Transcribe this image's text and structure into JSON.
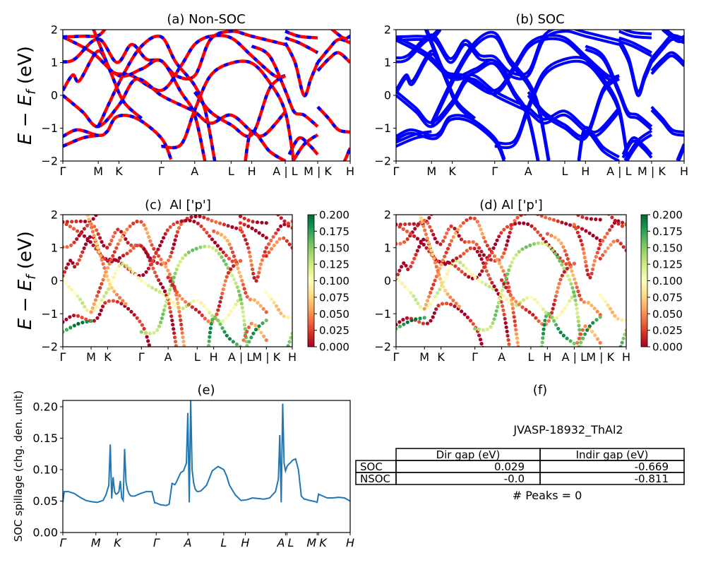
{
  "chart_data": [
    {
      "id": "a",
      "type": "line",
      "title": "(a) Non-SOC",
      "ylabel": "E − E_f (eV)",
      "ylim": [
        -2,
        2
      ],
      "yticks": [
        -2,
        -1,
        0,
        1,
        2
      ],
      "ytick_labels": [
        "−2",
        "−1",
        "0",
        "1",
        "2"
      ],
      "xticks": [
        0,
        0.36,
        0.57,
        1.0,
        1.34,
        1.71,
        1.92,
        2.26,
        2.59,
        2.92
      ],
      "xtick_labels": [
        "Γ",
        "M",
        "K",
        "Γ",
        "A",
        "L",
        "H",
        "A | L",
        "M | K",
        "H"
      ],
      "xlim": [
        0,
        2.92
      ],
      "series": [
        {
          "name": "bands-nonsoc",
          "color": "#ff0000",
          "style": "solid"
        },
        {
          "name": "bands-nonsoc-overlay",
          "color": "#0000ff",
          "style": "dashed"
        }
      ]
    },
    {
      "id": "b",
      "type": "line",
      "title": "(b) SOC",
      "ylim": [
        -2,
        2
      ],
      "yticks": [
        -2,
        -1,
        0,
        1,
        2
      ],
      "ytick_labels": [
        "−2",
        "−1",
        "0",
        "1",
        "2"
      ],
      "xticks": [
        0,
        0.36,
        0.57,
        1.0,
        1.34,
        1.71,
        1.92,
        2.26,
        2.59,
        2.92
      ],
      "xtick_labels": [
        "Γ",
        "M",
        "K",
        "Γ",
        "A",
        "L",
        "H",
        "A | L",
        "M | K",
        "H"
      ],
      "xlim": [
        0,
        2.92
      ],
      "series": [
        {
          "name": "bands-soc",
          "color": "#0000ff",
          "style": "solid"
        }
      ]
    },
    {
      "id": "c",
      "type": "scatter",
      "title": "(c)  Al ['p']",
      "ylabel": "E − E_f (eV)",
      "ylim": [
        -2,
        2
      ],
      "yticks": [
        -2,
        -1,
        0,
        1,
        2
      ],
      "ytick_labels": [
        "−2",
        "−1",
        "0",
        "1",
        "2"
      ],
      "xticks": [
        0,
        0.36,
        0.57,
        1.0,
        1.34,
        1.71,
        1.92,
        2.26,
        2.59,
        2.92
      ],
      "xtick_labels": [
        "Γ",
        "M",
        "K",
        "Γ",
        "A",
        "L",
        "H",
        "A | L",
        "M | K",
        "H"
      ],
      "colorbar": {
        "cmap": "RdYlGn",
        "range": [
          0.0,
          0.2
        ],
        "ticks": [
          "0.000",
          "0.025",
          "0.050",
          "0.075",
          "0.100",
          "0.125",
          "0.150",
          "0.175",
          "0.200"
        ]
      }
    },
    {
      "id": "d",
      "type": "scatter",
      "title": "(d) Al ['p']",
      "ylim": [
        -2,
        2
      ],
      "yticks": [
        -2,
        -1,
        0,
        1,
        2
      ],
      "ytick_labels": [
        "−2",
        "−1",
        "0",
        "1",
        "2"
      ],
      "xticks": [
        0,
        0.36,
        0.57,
        1.0,
        1.34,
        1.71,
        1.92,
        2.26,
        2.59,
        2.92
      ],
      "xtick_labels": [
        "Γ",
        "M",
        "K",
        "Γ",
        "A",
        "L",
        "H",
        "A | L",
        "M | K",
        "H"
      ],
      "colorbar": {
        "cmap": "RdYlGn",
        "range": [
          0.0,
          0.2
        ],
        "ticks": [
          "0.000",
          "0.025",
          "0.050",
          "0.075",
          "0.100",
          "0.125",
          "0.150",
          "0.175",
          "0.200"
        ]
      }
    },
    {
      "id": "e",
      "type": "line",
      "title": "(e)",
      "ylabel": "SOC spillage (chg. den. unit)",
      "ylim": [
        0,
        0.21
      ],
      "yticks": [
        0,
        0.05,
        0.1,
        0.15,
        0.2
      ],
      "ytick_labels": [
        "0.00",
        "0.05",
        "0.10",
        "0.15",
        "0.20"
      ],
      "xlim": [
        0,
        1
      ],
      "xticks": [
        0,
        0.115,
        0.19,
        0.325,
        0.435,
        0.56,
        0.635,
        0.775,
        0.78,
        0.885,
        0.89,
        1.0
      ],
      "xtick_labels": [
        "Γ",
        "M",
        "K",
        "Γ",
        "A",
        "L",
        "H",
        "A",
        "L",
        "M",
        "K",
        "H"
      ],
      "series": [
        {
          "name": "spillage",
          "color": "#1f77b4",
          "x": [
            0,
            0.005,
            0.02,
            0.04,
            0.06,
            0.08,
            0.1,
            0.12,
            0.14,
            0.15,
            0.16,
            0.165,
            0.17,
            0.175,
            0.18,
            0.185,
            0.19,
            0.195,
            0.2,
            0.205,
            0.21,
            0.215,
            0.22,
            0.225,
            0.23,
            0.235,
            0.24,
            0.25,
            0.27,
            0.29,
            0.31,
            0.32,
            0.325,
            0.33,
            0.34,
            0.36,
            0.37,
            0.38,
            0.39,
            0.395,
            0.4,
            0.41,
            0.42,
            0.43,
            0.435,
            0.44,
            0.445,
            0.45,
            0.455,
            0.46,
            0.465,
            0.47,
            0.48,
            0.5,
            0.52,
            0.54,
            0.56,
            0.57,
            0.58,
            0.6,
            0.62,
            0.64,
            0.66,
            0.68,
            0.7,
            0.72,
            0.74,
            0.75,
            0.755,
            0.76,
            0.765,
            0.77,
            0.775,
            0.78,
            0.785,
            0.79,
            0.8,
            0.81,
            0.82,
            0.83,
            0.84,
            0.845,
            0.85,
            0.87,
            0.88,
            0.885,
            0.89,
            0.9,
            0.92,
            0.94,
            0.96,
            0.98,
            1.0
          ],
          "y": [
            0.048,
            0.065,
            0.065,
            0.062,
            0.056,
            0.051,
            0.049,
            0.048,
            0.051,
            0.06,
            0.075,
            0.14,
            0.054,
            0.088,
            0.065,
            0.061,
            0.062,
            0.065,
            0.082,
            0.055,
            0.051,
            0.133,
            0.08,
            0.068,
            0.062,
            0.059,
            0.058,
            0.058,
            0.062,
            0.065,
            0.065,
            0.047,
            0.047,
            0.046,
            0.044,
            0.043,
            0.045,
            0.078,
            0.076,
            0.08,
            0.085,
            0.095,
            0.098,
            0.11,
            0.19,
            0.048,
            0.21,
            0.1,
            0.08,
            0.07,
            0.066,
            0.065,
            0.066,
            0.075,
            0.098,
            0.105,
            0.1,
            0.09,
            0.075,
            0.06,
            0.051,
            0.052,
            0.055,
            0.054,
            0.053,
            0.055,
            0.065,
            0.085,
            0.155,
            0.048,
            0.205,
            0.11,
            0.098,
            0.105,
            0.108,
            0.11,
            0.115,
            0.117,
            0.1,
            0.058,
            0.053,
            0.053,
            0.052,
            0.05,
            0.049,
            0.048,
            0.061,
            0.059,
            0.055,
            0.055,
            0.056,
            0.055,
            0.05
          ]
        }
      ]
    }
  ],
  "panel_f": {
    "title": "(f)",
    "material": "JVASP-18932_ThAl2",
    "table": {
      "columns": [
        "Dir gap (eV)",
        "Indir gap (eV)"
      ],
      "rows": [
        {
          "label": "SOC",
          "values": [
            "0.029",
            "-0.669"
          ]
        },
        {
          "label": "NSOC",
          "values": [
            "-0.0",
            "-0.811"
          ]
        }
      ]
    },
    "peaks": "# Peaks = 0"
  }
}
